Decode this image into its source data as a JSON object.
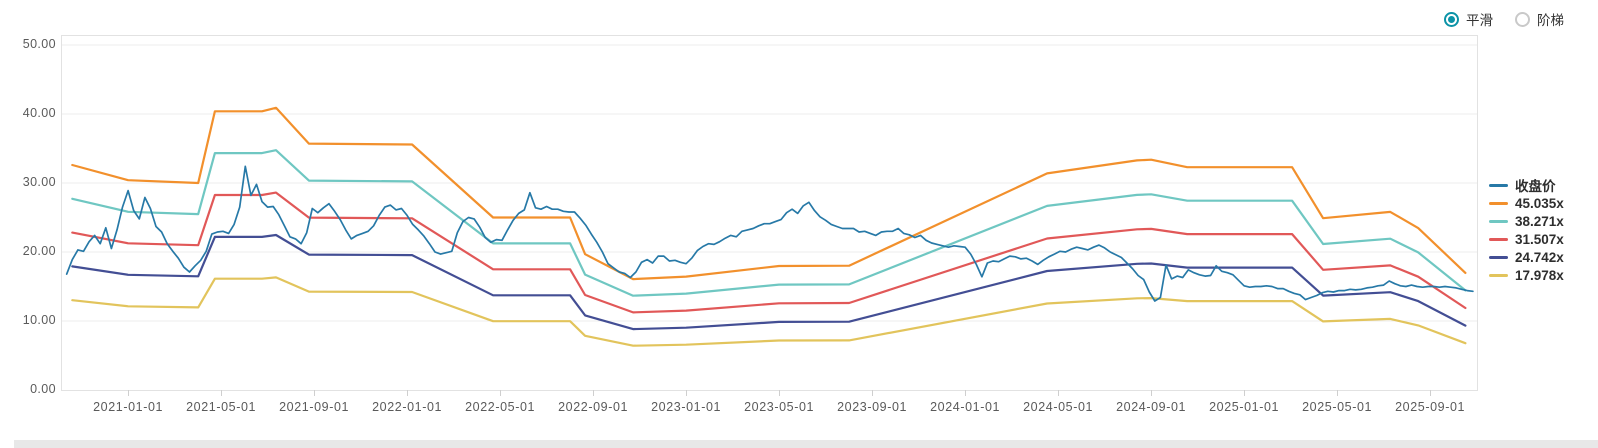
{
  "controls": {
    "mode_options": [
      {
        "label": "平滑",
        "selected": true
      },
      {
        "label": "阶梯",
        "selected": false
      }
    ],
    "accent_color": "#0b93a7"
  },
  "chart_data": {
    "type": "line",
    "title": "",
    "grid": true,
    "legend_position": "right",
    "y_axis": {
      "min": 0,
      "max": 50,
      "ticks": [
        0,
        10,
        20,
        30,
        40,
        50
      ],
      "tick_labels": [
        "0.00",
        "10.00",
        "20.00",
        "30.00",
        "40.00",
        "50.00"
      ]
    },
    "x_axis": {
      "tick_labels": [
        "2021-01-01",
        "2021-05-01",
        "2021-09-01",
        "2022-01-01",
        "2022-05-01",
        "2022-09-01",
        "2023-01-01",
        "2023-05-01",
        "2023-09-01",
        "2024-01-01",
        "2024-05-01",
        "2024-09-01",
        "2025-01-01",
        "2025-05-01",
        "2025-09-01"
      ],
      "start_year": 2020.76,
      "end_year": 2025.84
    },
    "legend": [
      {
        "label": "收盘价",
        "color": "#2779a7"
      },
      {
        "label": "45.035x",
        "color": "#f2902c"
      },
      {
        "label": "38.271x",
        "color": "#6fc7c2"
      },
      {
        "label": "31.507x",
        "color": "#e15858"
      },
      {
        "label": "24.742x",
        "color": "#434e94"
      },
      {
        "label": "17.978x",
        "color": "#e2c45c"
      }
    ],
    "pe_bands": {
      "basis": "band value = multiple × fair-value anchor",
      "multiples": [
        45.035,
        38.271,
        31.507,
        24.742,
        17.978
      ],
      "fair_value_anchors": [
        [
          2020.8,
          0.724
        ],
        [
          2021.0,
          0.675
        ],
        [
          2021.251,
          0.666
        ],
        [
          2021.311,
          0.897
        ],
        [
          2021.48,
          0.897
        ],
        [
          2021.53,
          0.908
        ],
        [
          2021.648,
          0.793
        ],
        [
          2022.018,
          0.79
        ],
        [
          2022.308,
          0.555
        ],
        [
          2022.584,
          0.555
        ],
        [
          2022.638,
          0.437
        ],
        [
          2022.81,
          0.357
        ],
        [
          2023.0,
          0.365
        ],
        [
          2023.333,
          0.399
        ],
        [
          2023.584,
          0.4
        ],
        [
          2024.294,
          0.697
        ],
        [
          2024.616,
          0.739
        ],
        [
          2024.667,
          0.741
        ],
        [
          2024.796,
          0.717
        ],
        [
          2025.172,
          0.717
        ],
        [
          2025.283,
          0.553
        ],
        [
          2025.524,
          0.573
        ],
        [
          2025.624,
          0.521
        ],
        [
          2025.793,
          0.377
        ]
      ]
    },
    "close_series": {
      "name": "收盘价",
      "t0": 2020.78,
      "dt": 0.02,
      "values": [
        16.8,
        18.9,
        20.3,
        20.1,
        21.5,
        22.4,
        21.2,
        23.5,
        20.5,
        23.2,
        26.5,
        28.9,
        26.0,
        24.8,
        27.9,
        26.3,
        23.7,
        22.9,
        21.2,
        20.1,
        19.1,
        17.8,
        17.1,
        18.0,
        18.8,
        20.1,
        22.6,
        22.9,
        23.0,
        22.7,
        24.0,
        26.5,
        32.4,
        28.2,
        29.8,
        27.3,
        26.5,
        26.6,
        25.4,
        23.8,
        22.2,
        21.9,
        21.2,
        22.8,
        26.3,
        25.7,
        26.4,
        27.0,
        25.9,
        24.7,
        23.2,
        21.9,
        22.4,
        22.7,
        23.0,
        23.8,
        25.3,
        26.5,
        26.8,
        26.1,
        26.3,
        25.3,
        24.0,
        23.2,
        22.3,
        21.2,
        20.0,
        19.7,
        19.9,
        20.1,
        22.8,
        24.4,
        25.0,
        24.8,
        23.6,
        22.1,
        21.4,
        21.8,
        21.7,
        23.2,
        24.6,
        25.6,
        26.1,
        28.6,
        26.4,
        26.2,
        26.6,
        26.2,
        26.2,
        25.9,
        25.8,
        25.8,
        24.9,
        23.9,
        22.6,
        21.4,
        20.0,
        18.3,
        17.7,
        17.1,
        16.9,
        16.3,
        17.1,
        18.5,
        18.9,
        18.4,
        19.4,
        19.4,
        18.7,
        18.8,
        18.5,
        18.3,
        19.1,
        20.2,
        20.8,
        21.2,
        21.1,
        21.5,
        22.0,
        22.4,
        22.2,
        23.0,
        23.2,
        23.4,
        23.8,
        24.1,
        24.1,
        24.4,
        24.7,
        25.7,
        26.2,
        25.6,
        26.7,
        27.2,
        26.0,
        25.1,
        24.6,
        24.0,
        23.7,
        23.4,
        23.4,
        23.4,
        22.9,
        23.0,
        22.7,
        22.4,
        22.9,
        23.0,
        23.0,
        23.4,
        22.7,
        22.5,
        22.1,
        22.4,
        21.7,
        21.3,
        21.1,
        20.9,
        20.7,
        20.9,
        20.8,
        20.7,
        19.7,
        18.2,
        16.4,
        18.4,
        18.7,
        18.6,
        19.0,
        19.4,
        19.3,
        19.0,
        19.1,
        18.7,
        18.2,
        18.8,
        19.3,
        19.7,
        20.1,
        20.0,
        20.4,
        20.7,
        20.5,
        20.3,
        20.7,
        21.0,
        20.6,
        20.0,
        19.6,
        19.2,
        18.4,
        17.6,
        16.6,
        16.0,
        14.2,
        12.9,
        13.4,
        18.1,
        16.1,
        16.5,
        16.3,
        17.4,
        17.0,
        16.7,
        16.5,
        16.6,
        18.0,
        17.2,
        17.0,
        16.7,
        15.9,
        15.1,
        14.9,
        15.0,
        15.0,
        15.1,
        15.0,
        14.7,
        14.7,
        14.3,
        14.0,
        13.8,
        13.1,
        13.4,
        13.7,
        14.1,
        14.3,
        14.2,
        14.4,
        14.4,
        14.6,
        14.5,
        14.6,
        14.8,
        14.9,
        15.1,
        15.2,
        15.8,
        15.4,
        15.1,
        15.0,
        15.2,
        15.0,
        14.9,
        15.0,
        15.0,
        14.9,
        15.0,
        14.9,
        14.8,
        14.6,
        14.4,
        14.3
      ]
    }
  }
}
